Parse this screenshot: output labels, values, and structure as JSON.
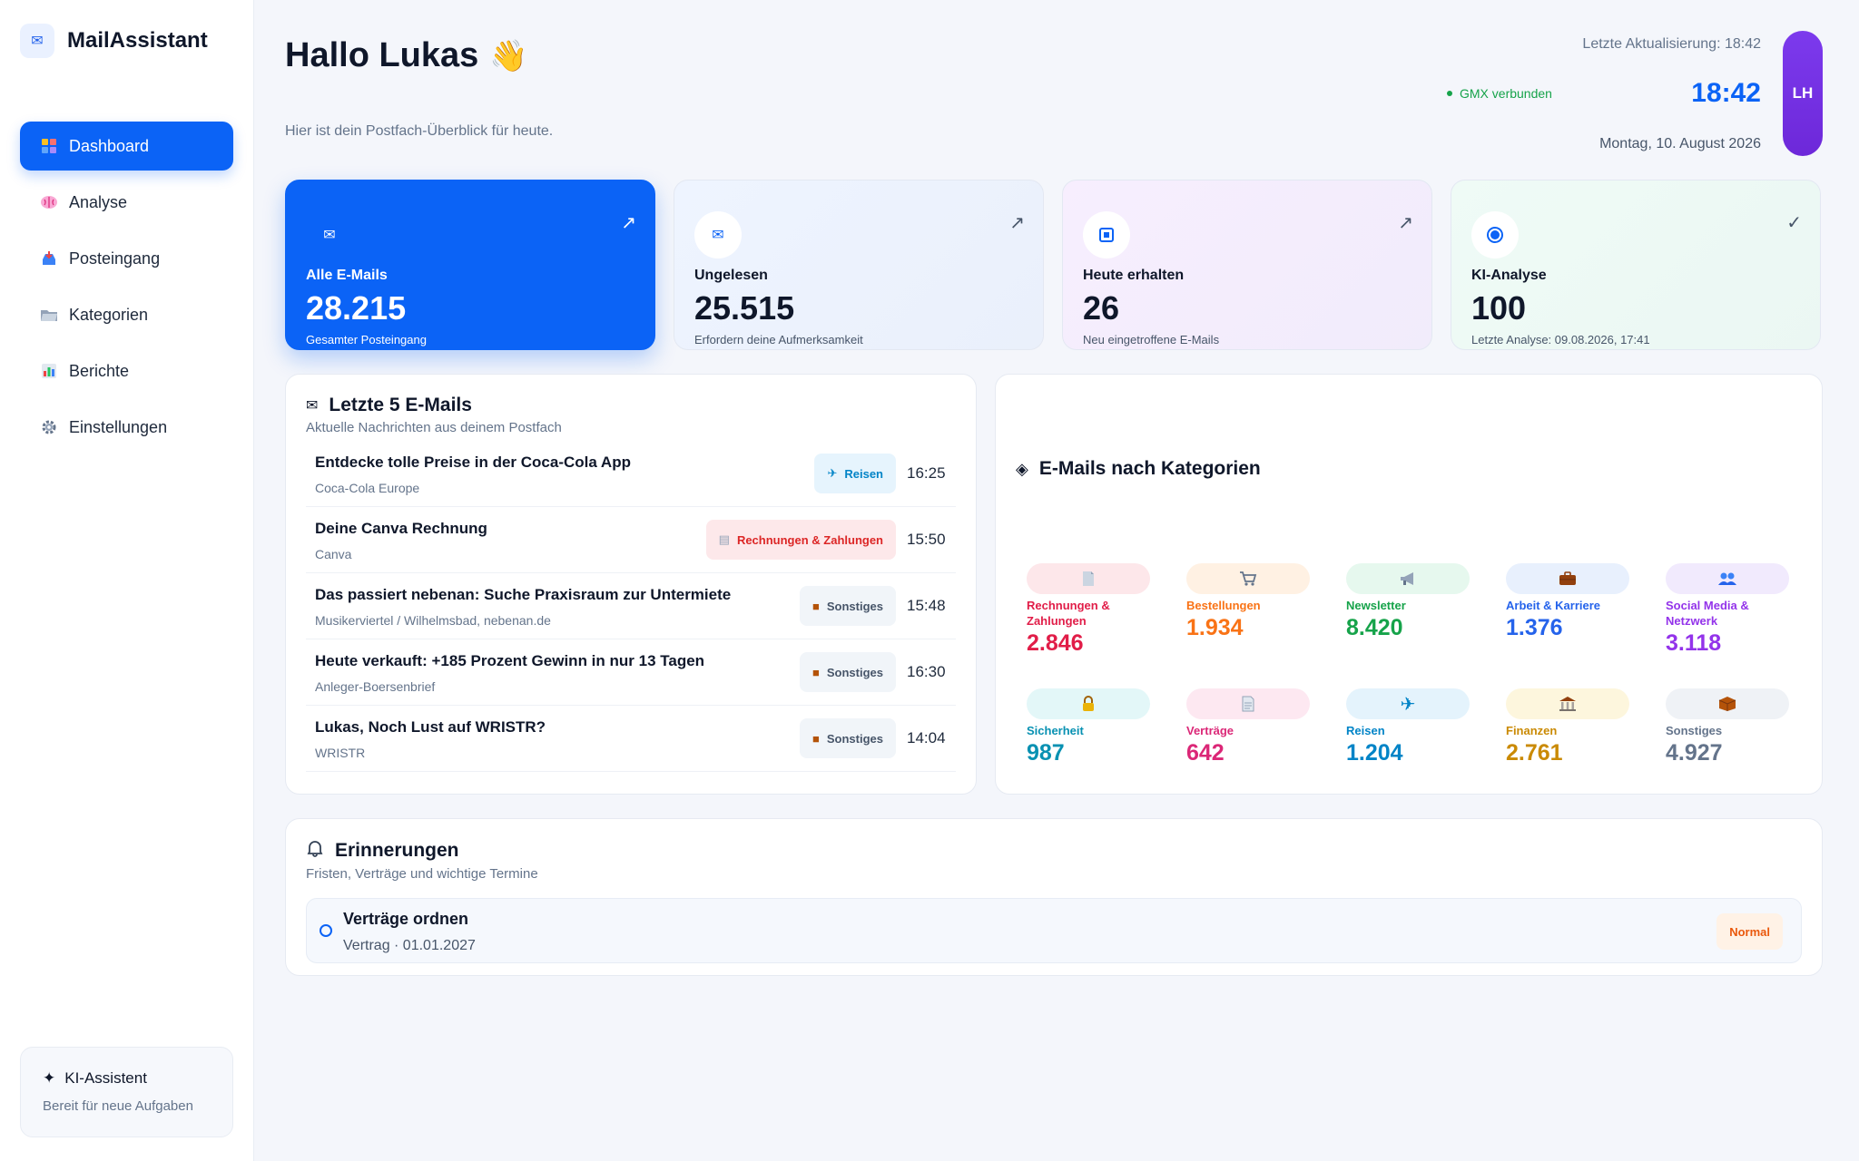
{
  "app": {
    "name": "MailAssistant",
    "icon": "envelope-icon"
  },
  "sidebar": {
    "items": [
      {
        "label": "Dashboard",
        "icon": "dashboard-icon",
        "active": true
      },
      {
        "label": "Analyse",
        "icon": "brain-icon"
      },
      {
        "label": "Posteingang",
        "icon": "inbox-tray-icon"
      },
      {
        "label": "Kategorien",
        "icon": "folder-icon"
      },
      {
        "label": "Berichte",
        "icon": "bar-chart-icon"
      },
      {
        "label": "Einstellungen",
        "icon": "gear-icon"
      }
    ],
    "assistant": {
      "title": "KI-Assistent",
      "status": "Bereit für neue Aufgaben"
    }
  },
  "header": {
    "greeting": "Hallo Lukas",
    "subtitle": "Hier ist dein Postfach-Überblick für heute.",
    "last_update": "Letzte Aktualisierung: 18:42",
    "connection": "GMX verbunden",
    "time": "18:42",
    "date": "Montag, 10. August 2026",
    "avatar_initials": "LH"
  },
  "stats": [
    {
      "label": "Alle E-Mails",
      "value": "28.215",
      "sub": "Gesamter Posteingang",
      "icon": "envelope-icon",
      "indicator": "↗"
    },
    {
      "label": "Ungelesen",
      "value": "25.515",
      "sub": "Erfordern deine Aufmerksamkeit",
      "icon": "envelope-icon",
      "indicator": "↗"
    },
    {
      "label": "Heute erhalten",
      "value": "26",
      "sub": "Neu eingetroffene E-Mails",
      "icon": "square-icon",
      "indicator": "↗"
    },
    {
      "label": "KI-Analyse",
      "value": "100",
      "sub": "Letzte Analyse: 09.08.2026, 17:41",
      "icon": "target-icon",
      "indicator": "✓"
    }
  ],
  "emails": {
    "title": "Letzte 5 E-Mails",
    "subtitle": "Aktuelle Nachrichten aus deinem Postfach",
    "items": [
      {
        "subject": "Entdecke tolle Preise in der Coca-Cola App",
        "sender": "Coca-Cola Europe",
        "category": "Reisen",
        "time": "16:25"
      },
      {
        "subject": "Deine Canva Rechnung",
        "sender": "Canva",
        "category": "Rechnungen & Zahlungen",
        "time": "15:50"
      },
      {
        "subject": "Das passiert nebenan: Suche Praxisraum zur Untermiete",
        "sender": "Musikerviertel / Wilhelmsbad, nebenan.de",
        "category": "Sonstiges",
        "time": "15:48"
      },
      {
        "subject": "Heute verkauft: +185 Prozent Gewinn in nur 13 Tagen",
        "sender": "Anleger-Boersenbrief",
        "category": "Sonstiges",
        "time": "16:30"
      },
      {
        "subject": "Lukas, Noch Lust auf WRISTR?",
        "sender": "WRISTR",
        "category": "Sonstiges",
        "time": "14:04"
      }
    ]
  },
  "categories": {
    "title": "E-Mails nach Kategorien",
    "items": [
      {
        "name": "Rechnungen & Zahlungen",
        "value": "2.846",
        "color": "#e11d48",
        "chip": "#fde7ea",
        "icon": "receipt-icon"
      },
      {
        "name": "Bestellungen",
        "value": "1.934",
        "color": "#f97316",
        "chip": "#fff1e3",
        "icon": "cart-icon"
      },
      {
        "name": "Newsletter",
        "value": "8.420",
        "color": "#16a34a",
        "chip": "#e6f8ee",
        "icon": "megaphone-icon"
      },
      {
        "name": "Arbeit & Karriere",
        "value": "1.376",
        "color": "#2563eb",
        "chip": "#e8f0fd",
        "icon": "briefcase-icon"
      },
      {
        "name": "Social Media & Netzwerk",
        "value": "3.118",
        "color": "#9333ea",
        "chip": "#f1eafd",
        "icon": "people-icon"
      },
      {
        "name": "Sicherheit",
        "value": "987",
        "color": "#0891b2",
        "chip": "#e3f7f8",
        "icon": "lock-icon"
      },
      {
        "name": "Verträge",
        "value": "642",
        "color": "#db2777",
        "chip": "#fde8f1",
        "icon": "document-icon"
      },
      {
        "name": "Reisen",
        "value": "1.204",
        "color": "#0284c7",
        "chip": "#e4f3fc",
        "icon": "airplane-icon"
      },
      {
        "name": "Finanzen",
        "value": "2.761",
        "color": "#ca8a04",
        "chip": "#fdf6dd",
        "icon": "bank-icon"
      },
      {
        "name": "Sonstiges",
        "value": "4.927",
        "color": "#64748b",
        "chip": "#eff2f6",
        "icon": "package-icon"
      }
    ]
  },
  "reminders": {
    "title": "Erinnerungen",
    "subtitle": "Fristen, Verträge und wichtige Termine",
    "items": [
      {
        "title": "Verträge ordnen",
        "detail": "Vertrag · 01.01.2027",
        "priority": "Normal"
      }
    ]
  }
}
